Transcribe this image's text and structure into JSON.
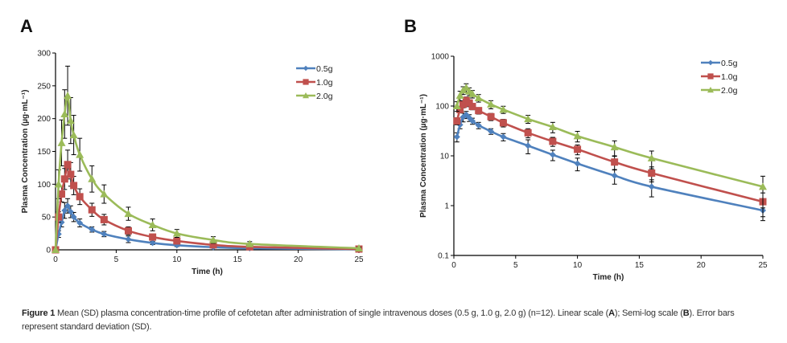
{
  "chart_data": [
    {
      "panel": "A",
      "type": "line",
      "title": "",
      "xlabel": "Time (h)",
      "ylabel": "Plasma Concentration (µg·mL⁻¹)",
      "xscale": "linear",
      "yscale": "linear",
      "xlim": [
        0,
        25
      ],
      "ylim": [
        0,
        300
      ],
      "xticks": [
        0,
        5,
        10,
        15,
        20,
        25
      ],
      "yticks": [
        0,
        50,
        100,
        150,
        200,
        250,
        300
      ],
      "grid": false,
      "legend": "top-right",
      "x": [
        0,
        0.25,
        0.5,
        0.75,
        1,
        1.25,
        1.5,
        2,
        3,
        4,
        6,
        8,
        10,
        13,
        16,
        25
      ],
      "series": [
        {
          "name": "0.5g",
          "color": "#4f81bd",
          "marker": "diamond",
          "values": [
            0,
            24,
            42,
            60,
            67,
            58,
            50,
            41,
            31,
            24,
            16,
            10.5,
            7,
            4,
            2.4,
            0.8
          ],
          "sd": [
            0,
            5,
            7,
            12,
            11,
            9,
            7,
            6,
            4,
            4,
            5,
            2.5,
            2,
            1.3,
            0.9,
            0.3
          ]
        },
        {
          "name": "1.0g",
          "color": "#c0504d",
          "marker": "square",
          "values": [
            0,
            50,
            85,
            108,
            130,
            115,
            98,
            81,
            61,
            46,
            29,
            19.5,
            13.5,
            7.5,
            4.5,
            1.2
          ],
          "sd": [
            0,
            8,
            12,
            16,
            22,
            18,
            14,
            12,
            10,
            8,
            6,
            4,
            3,
            2.3,
            1.5,
            0.6
          ]
        },
        {
          "name": "2.0g",
          "color": "#9bbb59",
          "marker": "triangle",
          "values": [
            0,
            100,
            163,
            207,
            235,
            197,
            175,
            145,
            108,
            85,
            55,
            38,
            25,
            15,
            9,
            2.4
          ],
          "sd": [
            0,
            22,
            35,
            37,
            45,
            35,
            30,
            25,
            20,
            14,
            10,
            9,
            6,
            5,
            3.5,
            1.5
          ]
        }
      ]
    },
    {
      "panel": "B",
      "type": "line",
      "title": "",
      "xlabel": "Time (h)",
      "ylabel": "Plasma Concentration (µg·mL⁻¹)",
      "xscale": "linear",
      "yscale": "log",
      "xlim": [
        0,
        25
      ],
      "ylim": [
        0.1,
        1000
      ],
      "xticks": [
        0,
        5,
        10,
        15,
        20,
        25
      ],
      "yticks": [
        0.1,
        1,
        10,
        100,
        1000
      ],
      "grid": false,
      "legend": "top-right",
      "x": [
        0.25,
        0.5,
        0.75,
        1,
        1.25,
        1.5,
        2,
        3,
        4,
        6,
        8,
        10,
        13,
        16,
        25
      ],
      "series": [
        {
          "name": "0.5g",
          "color": "#4f81bd",
          "marker": "diamond",
          "values": [
            24,
            42,
            60,
            67,
            58,
            50,
            41,
            31,
            24,
            16,
            10.5,
            7,
            4,
            2.4,
            0.8
          ],
          "sd": [
            5,
            7,
            12,
            11,
            9,
            7,
            6,
            4,
            4,
            5,
            2.5,
            2,
            1.3,
            0.9,
            0.3
          ]
        },
        {
          "name": "1.0g",
          "color": "#c0504d",
          "marker": "square",
          "values": [
            50,
            85,
            108,
            130,
            115,
            98,
            81,
            61,
            46,
            29,
            19.5,
            13.5,
            7.5,
            4.5,
            1.2
          ],
          "sd": [
            8,
            12,
            16,
            22,
            18,
            14,
            12,
            10,
            8,
            6,
            4,
            3,
            2.3,
            1.5,
            0.6
          ]
        },
        {
          "name": "2.0g",
          "color": "#9bbb59",
          "marker": "triangle",
          "values": [
            100,
            163,
            207,
            235,
            197,
            175,
            145,
            108,
            85,
            55,
            38,
            25,
            15,
            9,
            2.4
          ],
          "sd": [
            22,
            35,
            37,
            45,
            35,
            30,
            25,
            20,
            14,
            10,
            9,
            6,
            5,
            3.5,
            1.5
          ]
        }
      ]
    }
  ],
  "caption": {
    "label": "Figure 1",
    "text_1": " Mean (SD) plasma concentration-time profile of cefotetan after administration of single intravenous doses (0.5 g, 1.0 g, 2.0 g) (n=12). Linear scale (",
    "ref_a": "A",
    "text_2": "); Semi-log scale (",
    "ref_b": "B",
    "text_3": "). Error bars represent standard deviation (SD)."
  }
}
